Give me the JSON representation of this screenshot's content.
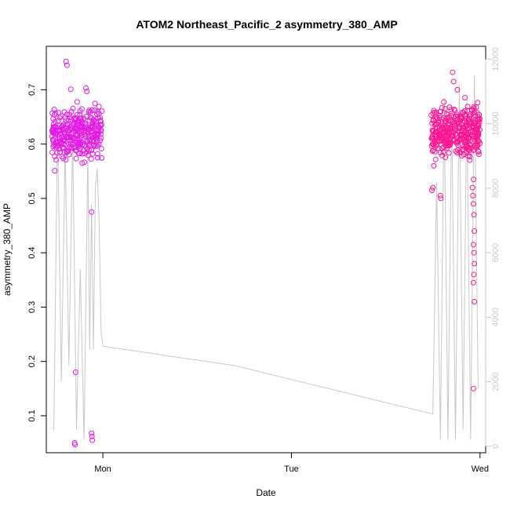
{
  "chart_data": {
    "type": "scatter",
    "title": "ATOM2 Northeast_Pacific_2 asymmetry_380_AMP",
    "xlabel": "Date",
    "ylabel": "asymmetry_380_AMP",
    "x_axis": {
      "unit": "days",
      "range": [
        -0.3,
        2.03
      ],
      "ticks": [
        {
          "value": 0,
          "label": "Mon"
        },
        {
          "value": 1,
          "label": "Tue"
        },
        {
          "value": 2,
          "label": "Wed"
        }
      ]
    },
    "y_axis_left": {
      "range": [
        0.032,
        0.78
      ],
      "ticks": [
        {
          "value": 0.1,
          "label": "0.1"
        },
        {
          "value": 0.2,
          "label": "0.2"
        },
        {
          "value": 0.3,
          "label": "0.3"
        },
        {
          "value": 0.4,
          "label": "0.4"
        },
        {
          "value": 0.5,
          "label": "0.5"
        },
        {
          "value": 0.6,
          "label": "0.6"
        },
        {
          "value": 0.7,
          "label": "0.7"
        }
      ]
    },
    "y_axis_right": {
      "range": [
        -200,
        12400
      ],
      "color": "#c8c8c8",
      "ticks": [
        {
          "value": 0,
          "label": "0"
        },
        {
          "value": 2000,
          "label": "2000"
        },
        {
          "value": 4000,
          "label": "4000"
        },
        {
          "value": 6000,
          "label": "6000"
        },
        {
          "value": 8000,
          "label": "8000"
        },
        {
          "value": 10000,
          "label": "10000"
        },
        {
          "value": 12000,
          "label": "12000"
        }
      ]
    },
    "grid": false,
    "series": [
      {
        "kind": "line",
        "axis": "right",
        "color": "#c8c8c8",
        "x": [
          -0.26,
          -0.24,
          -0.22,
          -0.2,
          -0.18,
          -0.16,
          -0.14,
          -0.12,
          -0.1,
          -0.09,
          -0.08,
          -0.07,
          -0.06,
          -0.05,
          -0.04,
          -0.03,
          -0.02,
          -0.01,
          0.0,
          0.7,
          1.75,
          1.77,
          1.79,
          1.81,
          1.83,
          1.85,
          1.87,
          1.89,
          1.91,
          1.93,
          1.95,
          1.97,
          1.99
        ],
        "y": [
          500,
          10000,
          2000,
          9300,
          2500,
          9600,
          500,
          5500,
          200,
          4500,
          9200,
          3000,
          7500,
          3000,
          8000,
          8600,
          7000,
          3600,
          3100,
          2500,
          1000,
          8200,
          200,
          10800,
          200,
          10500,
          200,
          11200,
          500,
          10800,
          200,
          11500,
          1800
        ],
        "note": ""
      },
      {
        "kind": "points",
        "axis": "left",
        "color": "#e619e6",
        "cluster_x": [
          -0.27,
          -0.005
        ],
        "cluster_y": [
          0.555,
          0.685
        ],
        "cluster_points": 320,
        "outliers": [
          {
            "x": -0.195,
            "y": 0.752
          },
          {
            "x": -0.19,
            "y": 0.745
          },
          {
            "x": -0.17,
            "y": 0.701
          },
          {
            "x": -0.15,
            "y": 0.05
          },
          {
            "x": -0.148,
            "y": 0.047
          },
          {
            "x": -0.145,
            "y": 0.18
          },
          {
            "x": -0.09,
            "y": 0.703
          },
          {
            "x": -0.085,
            "y": 0.697
          },
          {
            "x": -0.06,
            "y": 0.068
          },
          {
            "x": -0.058,
            "y": 0.062
          },
          {
            "x": -0.056,
            "y": 0.055
          },
          {
            "x": -0.06,
            "y": 0.475
          },
          {
            "x": -0.255,
            "y": 0.551
          },
          {
            "x": -0.11,
            "y": 0.565
          }
        ]
      },
      {
        "kind": "points",
        "axis": "left",
        "color": "#ff1493",
        "cluster_x": [
          1.74,
          2.0
        ],
        "cluster_y": [
          0.555,
          0.69
        ],
        "cluster_points": 360,
        "outliers": [
          {
            "x": 1.745,
            "y": 0.515
          },
          {
            "x": 1.75,
            "y": 0.52
          },
          {
            "x": 1.755,
            "y": 0.56
          },
          {
            "x": 1.79,
            "y": 0.505
          },
          {
            "x": 1.792,
            "y": 0.5
          },
          {
            "x": 1.855,
            "y": 0.732
          },
          {
            "x": 1.86,
            "y": 0.715
          },
          {
            "x": 1.88,
            "y": 0.7
          },
          {
            "x": 1.96,
            "y": 0.52
          },
          {
            "x": 1.962,
            "y": 0.505
          },
          {
            "x": 1.965,
            "y": 0.49
          },
          {
            "x": 1.968,
            "y": 0.47
          },
          {
            "x": 1.97,
            "y": 0.44
          },
          {
            "x": 1.965,
            "y": 0.415
          },
          {
            "x": 1.968,
            "y": 0.4
          },
          {
            "x": 1.97,
            "y": 0.38
          },
          {
            "x": 1.967,
            "y": 0.36
          },
          {
            "x": 1.965,
            "y": 0.345
          },
          {
            "x": 1.97,
            "y": 0.31
          },
          {
            "x": 1.965,
            "y": 0.15
          },
          {
            "x": 1.966,
            "y": 0.535
          }
        ]
      }
    ]
  }
}
